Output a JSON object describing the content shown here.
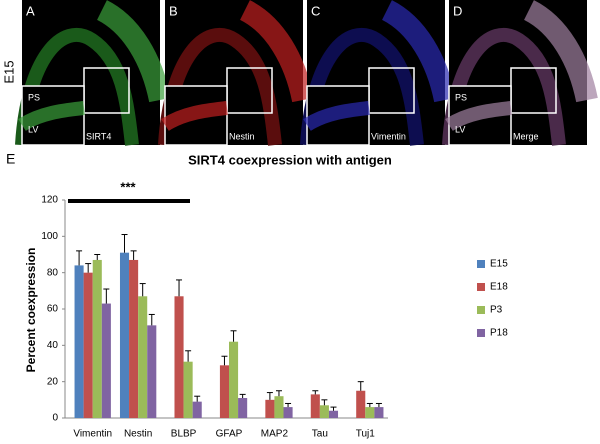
{
  "row_label": "E15",
  "panel_E_label": "E",
  "panels": [
    {
      "letter": "A",
      "labels": [
        "PS",
        "LV",
        "SIRT4"
      ]
    },
    {
      "letter": "B",
      "labels": [
        "Nestin"
      ]
    },
    {
      "letter": "C",
      "labels": [
        "Vimentin"
      ]
    },
    {
      "letter": "D",
      "labels": [
        "PS",
        "LV",
        "Merge"
      ]
    }
  ],
  "chart_data": {
    "type": "bar",
    "title": "SIRT4 coexpression with antigen",
    "y_label": "Percent coexpression",
    "annotation": "***",
    "categories": [
      "Vimentin",
      "Nestin",
      "BLBP",
      "GFAP",
      "MAP2",
      "Tau",
      "Tuj1"
    ],
    "series": [
      {
        "name": "E15",
        "color": "#4f81bd",
        "values": [
          84,
          91,
          null,
          null,
          null,
          null,
          null
        ],
        "errors": [
          8,
          10,
          null,
          null,
          null,
          null,
          null
        ]
      },
      {
        "name": "E18",
        "color": "#c0504d",
        "values": [
          80,
          87,
          67,
          29,
          10,
          13,
          15
        ],
        "errors": [
          5,
          5,
          9,
          5,
          4,
          2,
          5
        ]
      },
      {
        "name": "P3",
        "color": "#9bbb59",
        "values": [
          87,
          67,
          31,
          42,
          12,
          7,
          6
        ],
        "errors": [
          3,
          7,
          6,
          6,
          3,
          3,
          2
        ]
      },
      {
        "name": "P18",
        "color": "#8064a2",
        "values": [
          63,
          51,
          9,
          11,
          6,
          4,
          6
        ],
        "errors": [
          8,
          6,
          3,
          2,
          2,
          2,
          2
        ]
      }
    ],
    "ylim": [
      0,
      120
    ],
    "yticks": [
      0,
      20,
      40,
      60,
      80,
      100,
      120
    ]
  }
}
